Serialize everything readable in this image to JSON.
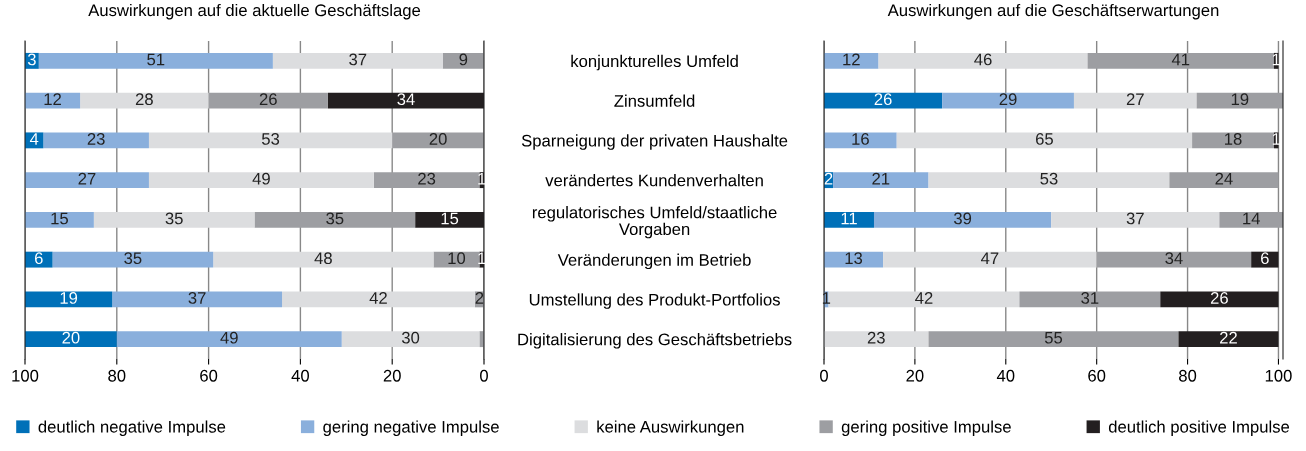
{
  "chart_data": [
    {
      "type": "bar",
      "orientation": "horizontal",
      "stacked": true,
      "title": "Auswirkungen auf die aktuelle Geschäftslage",
      "categories": [
        null,
        null,
        null,
        null,
        null,
        null,
        null,
        null
      ],
      "xlim": [
        100,
        0
      ],
      "xticks": [
        100,
        80,
        60,
        40,
        20,
        0
      ],
      "grid": "x",
      "tick_labels": "x",
      "series": [
        {
          "color": "#231f20",
          "values": [
            0,
            34,
            0,
            1,
            15,
            1,
            0,
            0
          ],
          "value_labels": [
            null,
            "34",
            null,
            "1",
            "15",
            "1",
            null,
            null
          ]
        },
        {
          "color": "#9d9ea2",
          "values": [
            9,
            26,
            20,
            23,
            35,
            10,
            2,
            1
          ],
          "value_labels": [
            "9",
            "26",
            "20",
            "23",
            "35",
            "10",
            "2",
            null
          ]
        },
        {
          "color": "#dcdddf",
          "values": [
            37,
            28,
            53,
            49,
            35,
            48,
            42,
            30
          ],
          "value_labels": [
            "37",
            "28",
            "53",
            "49",
            "35",
            "48",
            "42",
            "30"
          ]
        },
        {
          "color": "#8aafdc",
          "values": [
            51,
            12,
            23,
            27,
            15,
            35,
            37,
            49
          ],
          "value_labels": [
            "51",
            "12",
            "23",
            "27",
            "15",
            "35",
            "37",
            "49"
          ]
        },
        {
          "color": "#0070b8",
          "values": [
            3,
            0,
            4,
            0,
            0,
            6,
            19,
            20
          ],
          "value_labels": [
            "3",
            null,
            "4",
            null,
            null,
            "6",
            "19",
            "20"
          ]
        }
      ]
    },
    {
      "type": "bar",
      "orientation": "horizontal",
      "stacked": true,
      "title": "Auswirkungen auf die Geschäftserwartungen",
      "categories": [
        "konjunkturelles Umfeld",
        "Zinsumfeld",
        "Sparneigung der privaten Haushalte",
        "verändertes Kundenverhalten",
        "regulatorisches Umfeld/staatliche\nVorgaben",
        "Veränderungen im Betrieb",
        "Umstellung des Produkt-Portfolios",
        "Digitalisierung des Geschäftsbetriebs"
      ],
      "xlim": [
        0,
        101
      ],
      "xticks": [
        0,
        20,
        40,
        60,
        80,
        100
      ],
      "grid": "x",
      "legend": "bottom",
      "series": [
        {
          "name": "deutlich negative Impulse",
          "color": "#0070b8",
          "values": [
            0,
            26,
            0,
            2,
            11,
            0,
            0,
            0
          ],
          "value_labels": [
            null,
            "26",
            null,
            "2",
            "11",
            null,
            null,
            null
          ]
        },
        {
          "name": "gering negative Impulse",
          "color": "#8aafdc",
          "values": [
            12,
            29,
            16,
            21,
            39,
            13,
            1,
            0
          ],
          "value_labels": [
            "12",
            "29",
            "16",
            "21",
            "39",
            "13",
            "1",
            null
          ]
        },
        {
          "name": "keine Auswirkungen",
          "color": "#dcdddf",
          "values": [
            46,
            27,
            65,
            53,
            37,
            47,
            42,
            23
          ],
          "value_labels": [
            "46",
            "27",
            "65",
            "53",
            "37",
            "47",
            "42",
            "23"
          ]
        },
        {
          "name": "gering positive Impulse",
          "color": "#9d9ea2",
          "values": [
            41,
            19,
            18,
            24,
            14,
            34,
            31,
            55
          ],
          "value_labels": [
            "41",
            "19",
            "18",
            "24",
            "14",
            "34",
            "31",
            "55"
          ]
        },
        {
          "name": "deutlich positive Impulse",
          "color": "#231f20",
          "values": [
            1,
            0,
            1,
            0,
            0,
            6,
            26,
            22
          ],
          "value_labels": [
            "1",
            null,
            "1",
            null,
            null,
            "6",
            "26",
            "22"
          ]
        }
      ]
    }
  ]
}
